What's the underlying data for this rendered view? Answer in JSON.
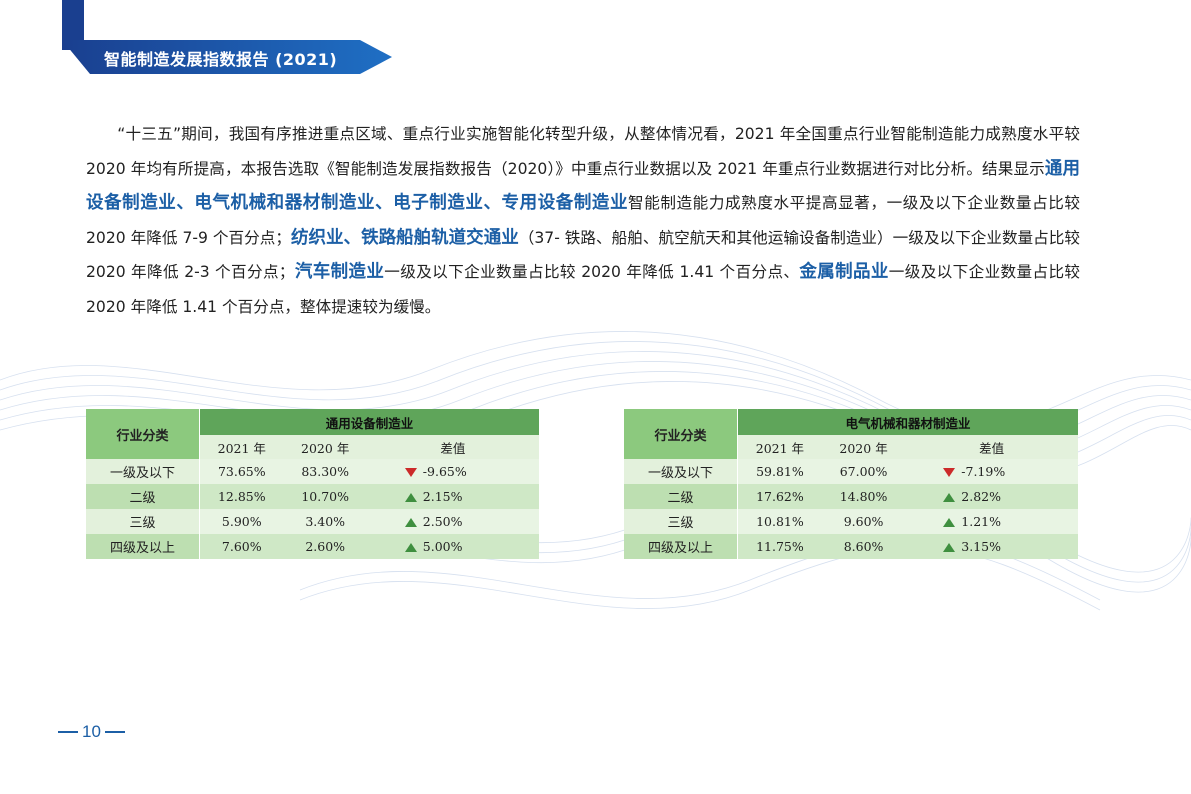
{
  "header": {
    "title": "智能制造发展指数报告 (2021)"
  },
  "paragraph": {
    "p1": "“十三五”期间，我国有序推进重点区域、重点行业实施智能化转型升级，从整体情况看，2021 年全国重点行业智能制造能力成熟度水平较 2020 年均有所提高，本报告选取《智能制造发展指数报告（2020）》中重点行业数据以及 2021 年重点行业数据进行对比分析。结果显示",
    "h1": "通用设备制造业、电气机械和器材制造业、电子制造业、专用设备制造业",
    "p2": "智能制造能力成熟度水平提高显著，一级及以下企业数量占比较 2020 年降低 7-9 个百分点；",
    "h2": "纺织业、铁路船舶轨道交通业",
    "p3": "（37- 铁路、船舶、航空航天和其他运输设备制造业）一级及以下企业数量占比较 2020 年降低 2-3 个百分点；",
    "h3": "汽车制造业",
    "p4": "一级及以下企业数量占比较 2020 年降低 1.41 个百分点、",
    "h4": "金属制品业",
    "p5": "一级及以下企业数量占比较 2020 年降低 1.41 个百分点，整体提速较为缓慢。"
  },
  "tables": [
    {
      "title": "通用设备制造业",
      "cat_header": "行业分类",
      "cols": [
        "2021 年",
        "2020 年",
        "差值"
      ],
      "rows": [
        {
          "cat": "一级及以下",
          "y2021": "73.65%",
          "y2020": "83.30%",
          "diff": "-9.65%",
          "dir": "down"
        },
        {
          "cat": "二级",
          "y2021": "12.85%",
          "y2020": "10.70%",
          "diff": "2.15%",
          "dir": "up"
        },
        {
          "cat": "三级",
          "y2021": "5.90%",
          "y2020": "3.40%",
          "diff": "2.50%",
          "dir": "up"
        },
        {
          "cat": "四级及以上",
          "y2021": "7.60%",
          "y2020": "2.60%",
          "diff": "5.00%",
          "dir": "up"
        }
      ]
    },
    {
      "title": "电气机械和器材制造业",
      "cat_header": "行业分类",
      "cols": [
        "2021 年",
        "2020 年",
        "差值"
      ],
      "rows": [
        {
          "cat": "一级及以下",
          "y2021": "59.81%",
          "y2020": "67.00%",
          "diff": "-7.19%",
          "dir": "down"
        },
        {
          "cat": "二级",
          "y2021": "17.62%",
          "y2020": "14.80%",
          "diff": "2.82%",
          "dir": "up"
        },
        {
          "cat": "三级",
          "y2021": "10.81%",
          "y2020": "9.60%",
          "diff": "1.21%",
          "dir": "up"
        },
        {
          "cat": "四级及以上",
          "y2021": "11.75%",
          "y2020": "8.60%",
          "diff": "3.15%",
          "dir": "up"
        }
      ]
    }
  ],
  "footer": {
    "page_number": "10"
  },
  "colors": {
    "brand_blue": "#1c5fa6",
    "header_green": "#5fa55a",
    "down_red": "#cc2a2a",
    "up_green": "#3f8f3f"
  }
}
